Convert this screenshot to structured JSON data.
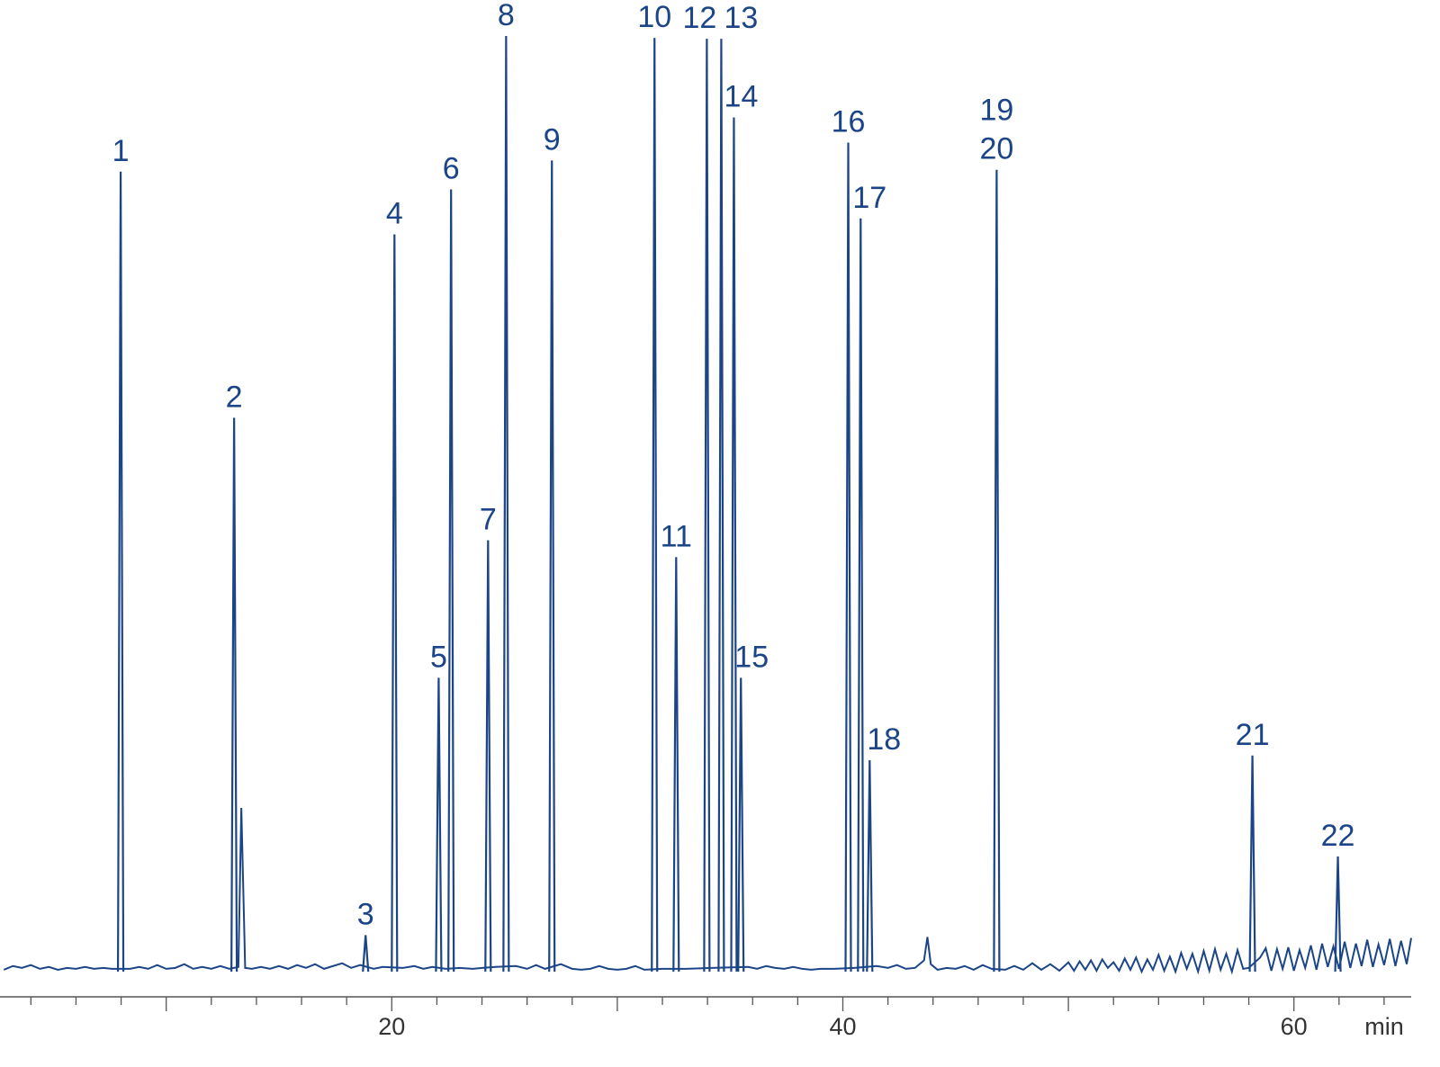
{
  "chart_data": {
    "type": "chromatogram",
    "color": "#1c4587",
    "x_label": "min",
    "xlim": [
      2.63,
      65.2
    ],
    "ylim": [
      0,
      100
    ],
    "xticks": [
      20,
      40,
      60
    ],
    "xminor": [
      4,
      6,
      8,
      10,
      12,
      14,
      16,
      18,
      22,
      24,
      26,
      28,
      30,
      32,
      34,
      36,
      38,
      42,
      44,
      46,
      48,
      50,
      52,
      54,
      56,
      58,
      62,
      64
    ],
    "peaks": {
      "labels": [
        [
          "1"
        ],
        [
          "2"
        ],
        [
          "3"
        ],
        [
          "4"
        ],
        [
          "5"
        ],
        [
          "6"
        ],
        [
          "7"
        ],
        [
          "8"
        ],
        [
          "9"
        ],
        [
          "10"
        ],
        [
          "11"
        ],
        [
          "12"
        ],
        [
          "13"
        ],
        [
          "14"
        ],
        [
          "15"
        ],
        [
          "16"
        ],
        [
          "17"
        ],
        [
          "18"
        ],
        [
          "19",
          "20"
        ],
        [
          "21"
        ],
        [
          "22"
        ]
      ],
      "rt": [
        7.98,
        13.01,
        18.84,
        20.12,
        22.08,
        22.63,
        24.27,
        25.07,
        27.1,
        31.65,
        32.61,
        33.97,
        34.61,
        35.17,
        35.48,
        40.24,
        40.79,
        41.19,
        46.82,
        58.16,
        61.95
      ],
      "height": [
        85.5,
        59.2,
        3.9,
        78.8,
        31.4,
        83.6,
        46.1,
        100,
        86.7,
        99.8,
        44.3,
        99.7,
        99.7,
        91.3,
        31.4,
        88.6,
        80.5,
        22.6,
        85.7,
        23.1,
        12.3
      ]
    },
    "trace": {
      "x": [
        2.8,
        3.2,
        3.6,
        4,
        4.4,
        4.8,
        5.2,
        5.6,
        6,
        6.4,
        6.8,
        7.2,
        7.6,
        8.4,
        8.8,
        9.2,
        9.6,
        10,
        10.4,
        10.8,
        11.2,
        11.6,
        12,
        12.4,
        12.8,
        13.2,
        13.33,
        13.5,
        13.8,
        14.2,
        14.6,
        15,
        15.4,
        15.8,
        16.2,
        16.6,
        17,
        17.4,
        17.8,
        18.2,
        18.6,
        19.2,
        19.6,
        20.5,
        21,
        21.4,
        21.8,
        22.4,
        23,
        23.6,
        24,
        24.6,
        25.5,
        26,
        26.4,
        26.8,
        27.5,
        28,
        28.4,
        28.8,
        29.2,
        29.6,
        30,
        30.4,
        30.8,
        31.2,
        32,
        33,
        34.2,
        35.8,
        36.2,
        36.6,
        37,
        37.4,
        37.8,
        38.2,
        38.6,
        39,
        39.6,
        40.5,
        41.5,
        42,
        42.4,
        42.8,
        43.2,
        43.6,
        43.75,
        43.9,
        44.2,
        44.6,
        45,
        45.4,
        45.8,
        46.2,
        46.6,
        47.2,
        47.6,
        48,
        48.4,
        48.8,
        49.2,
        49.6,
        50,
        50.25,
        50.5,
        50.75,
        51,
        51.25,
        51.5,
        51.75,
        52,
        52.25,
        52.5,
        52.75,
        53,
        53.25,
        53.5,
        53.75,
        54,
        54.25,
        54.5,
        54.75,
        55,
        55.25,
        55.5,
        55.75,
        56,
        56.25,
        56.5,
        56.75,
        57,
        57.25,
        57.5,
        57.75,
        58,
        58.5,
        58.75,
        59,
        59.25,
        59.5,
        59.75,
        60,
        60.25,
        60.5,
        60.75,
        61,
        61.25,
        61.5,
        61.75,
        62,
        62.25,
        62.5,
        62.75,
        63,
        63.25,
        63.5,
        63.75,
        64,
        64.25,
        64.5,
        64.75,
        65,
        65.2
      ],
      "values": [
        0.2,
        0.6,
        0.4,
        0.7,
        0.3,
        0.5,
        0.2,
        0.4,
        0.3,
        0.5,
        0.3,
        0.4,
        0.3,
        0.3,
        0.5,
        0.3,
        0.7,
        0.3,
        0.4,
        0.8,
        0.3,
        0.5,
        0.3,
        0.6,
        0.3,
        0.5,
        17.5,
        0.4,
        0.3,
        0.5,
        0.3,
        0.6,
        0.3,
        0.7,
        0.4,
        0.8,
        0.3,
        0.6,
        0.9,
        0.4,
        0.7,
        0.3,
        0.5,
        0.4,
        0.6,
        0.3,
        0.5,
        0.3,
        0.4,
        0.3,
        0.4,
        0.5,
        0.6,
        0.3,
        0.7,
        0.3,
        0.8,
        0.3,
        0.2,
        0.3,
        0.6,
        0.3,
        0.2,
        0.3,
        0.6,
        0.2,
        0.3,
        0.3,
        0.4,
        0.5,
        0.3,
        0.6,
        0.4,
        0.3,
        0.5,
        0.3,
        0.2,
        0.3,
        0.3,
        0.4,
        0.6,
        0.4,
        0.7,
        0.3,
        0.4,
        1.2,
        3.7,
        0.8,
        0.2,
        0.4,
        0.3,
        0.6,
        0.2,
        0.7,
        0.3,
        0.2,
        0.6,
        0.2,
        0.9,
        0.2,
        0.8,
        0.1,
        1.0,
        0.1,
        1.1,
        0.2,
        1.2,
        0.1,
        1.3,
        0.4,
        1.0,
        0.1,
        1.4,
        0.2,
        1.5,
        0.0,
        1.3,
        0.2,
        1.8,
        0.1,
        1.6,
        0.0,
        2.0,
        0.3,
        1.9,
        0.0,
        2.2,
        0.1,
        2.4,
        0.2,
        1.9,
        0.0,
        2.3,
        0.3,
        0.4,
        1.5,
        2.5,
        0.1,
        2.4,
        0.3,
        2.6,
        0.1,
        2.3,
        0.4,
        2.8,
        0.2,
        3.0,
        0.5,
        2.7,
        0.3,
        3.2,
        0.4,
        3.0,
        0.6,
        3.4,
        0.5,
        2.9,
        0.7,
        3.5,
        0.6,
        3.3,
        0.8,
        3.6
      ]
    }
  }
}
